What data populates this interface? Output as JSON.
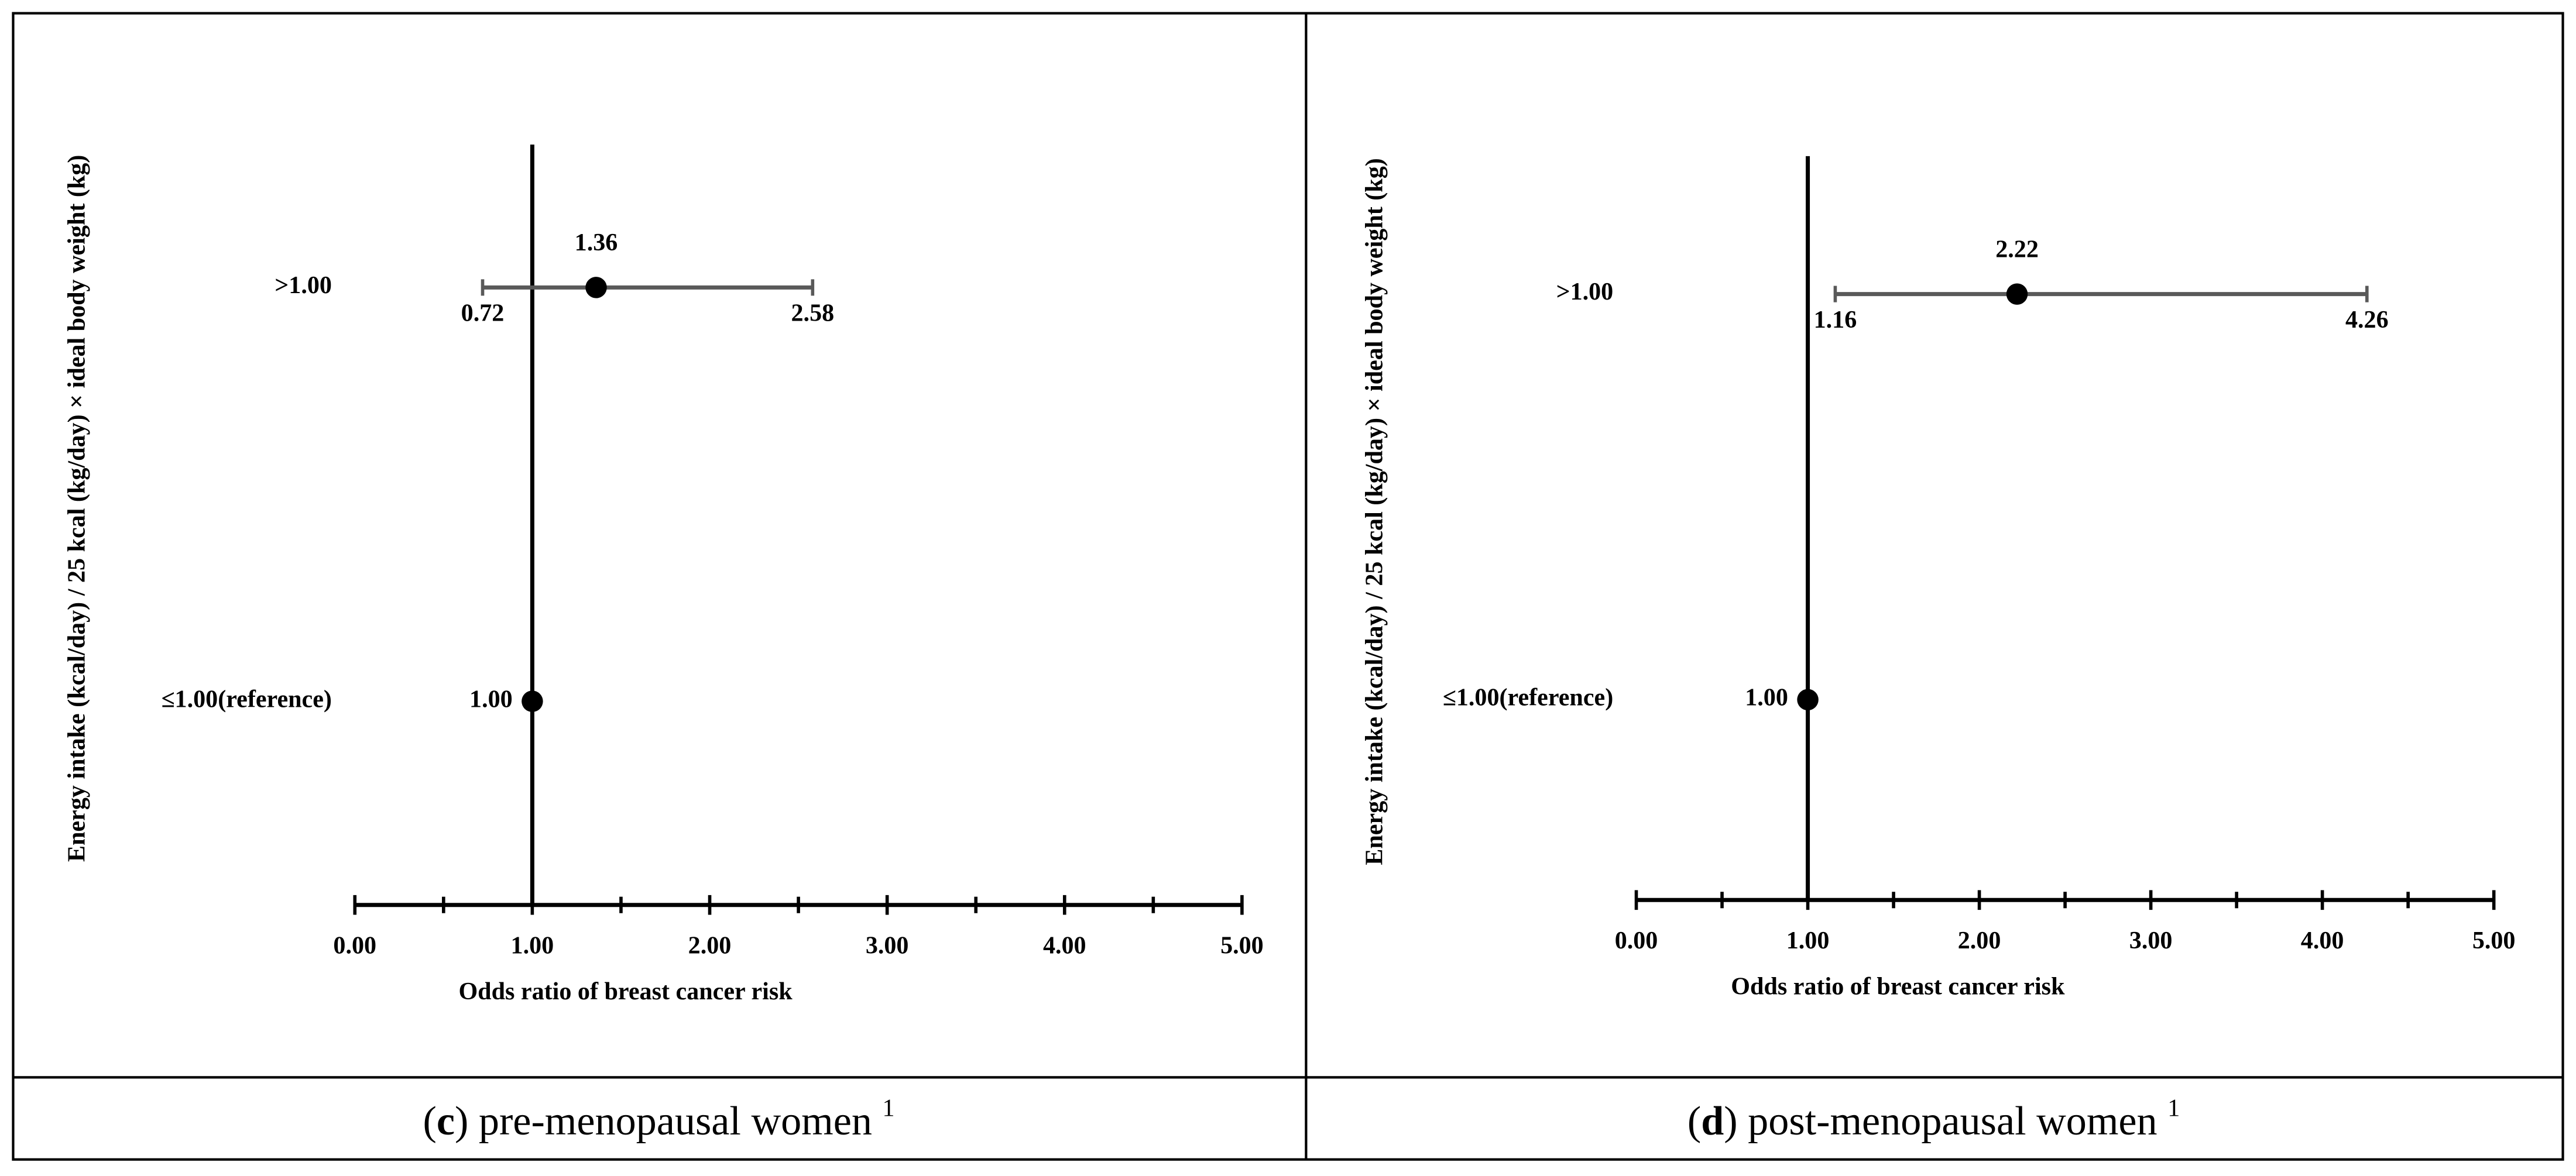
{
  "chart_data": [
    {
      "type": "forest",
      "ylabel": "Energy intake (kcal/day) / 25 kcal (kg/day) × ideal body weight (kg)",
      "xlabel": "Odds ratio of breast cancer risk",
      "categories": [
        ">1.00",
        "≤1.00(reference)"
      ],
      "values": [
        1.36,
        1.0
      ],
      "value_labels": [
        "1.36",
        "1.00"
      ],
      "lower": [
        0.72,
        null
      ],
      "upper": [
        2.58,
        null
      ],
      "ref_line": 1.0,
      "xlim": [
        0,
        5
      ],
      "xticks": [
        {
          "value": 0,
          "label": "0.00"
        },
        {
          "value": 1,
          "label": "1.00"
        },
        {
          "value": 2,
          "label": "2.00"
        },
        {
          "value": 3,
          "label": "3.00"
        },
        {
          "value": 4,
          "label": "4.00"
        },
        {
          "value": 5,
          "label": "5.00"
        }
      ],
      "minor_xticks": [
        0.5,
        1.5,
        2.5,
        3.5,
        4.5
      ],
      "color": "#000000",
      "error_color": "#595959",
      "caption": {
        "open": "(",
        "label": "c",
        "text": ") pre-menopausal women ",
        "note": "1"
      }
    },
    {
      "type": "forest",
      "ylabel": "Energy intake (kcal/day) / 25 kcal (kg/day) × ideal body weight (kg)",
      "xlabel": "Odds ratio of breast cancer risk",
      "categories": [
        ">1.00",
        "≤1.00(reference)"
      ],
      "values": [
        2.22,
        1.0
      ],
      "value_labels": [
        "2.22",
        "1.00"
      ],
      "lower": [
        1.16,
        null
      ],
      "upper": [
        4.26,
        null
      ],
      "ref_line": 1.0,
      "xlim": [
        0,
        5
      ],
      "xticks": [
        {
          "value": 0,
          "label": "0.00"
        },
        {
          "value": 1,
          "label": "1.00"
        },
        {
          "value": 2,
          "label": "2.00"
        },
        {
          "value": 3,
          "label": "3.00"
        },
        {
          "value": 4,
          "label": "4.00"
        },
        {
          "value": 5,
          "label": "5.00"
        }
      ],
      "minor_xticks": [
        0.5,
        1.5,
        2.5,
        3.5,
        4.5
      ],
      "color": "#000000",
      "error_color": "#595959",
      "caption": {
        "open": "(",
        "label": "d",
        "text": ") post-menopausal women ",
        "note": "1"
      }
    }
  ]
}
